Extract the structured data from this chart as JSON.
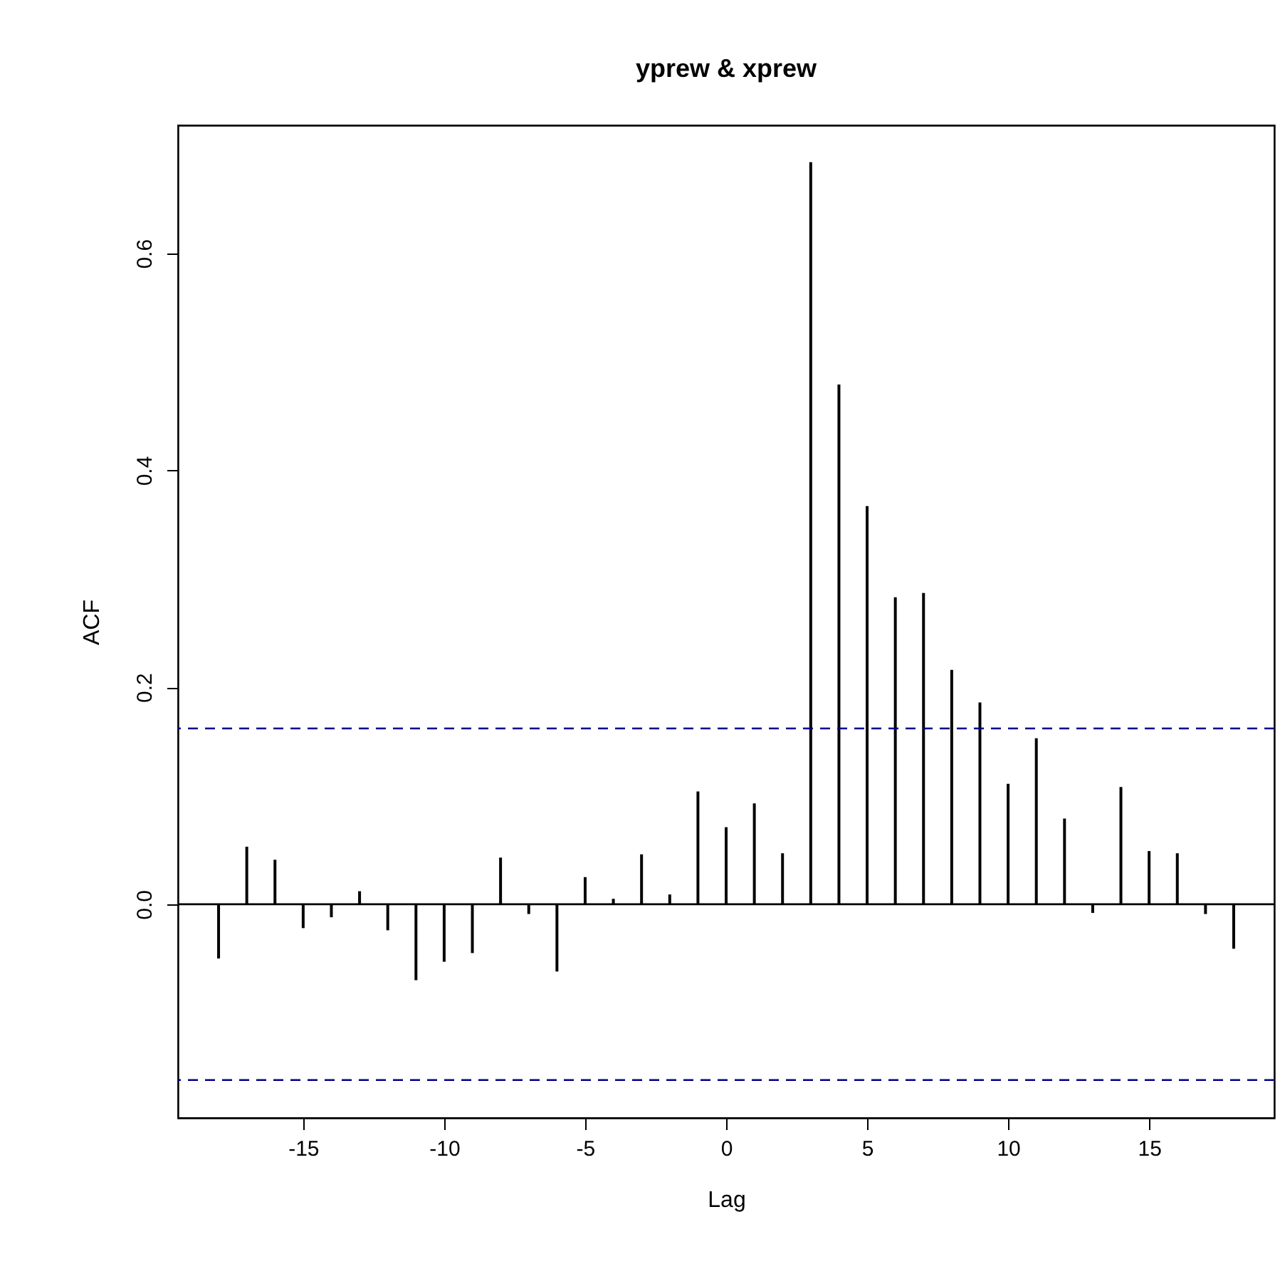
{
  "chart_data": {
    "type": "bar",
    "title": "yprew & xprew",
    "xlabel": "Lag",
    "ylabel": "ACF",
    "x": [
      -18,
      -17,
      -16,
      -15,
      -14,
      -13,
      -12,
      -11,
      -10,
      -9,
      -8,
      -7,
      -6,
      -5,
      -4,
      -3,
      -2,
      -1,
      0,
      1,
      2,
      3,
      4,
      5,
      6,
      7,
      8,
      9,
      10,
      11,
      12,
      13,
      14,
      15,
      16,
      17,
      18
    ],
    "values": [
      -0.05,
      0.053,
      0.041,
      -0.022,
      -0.012,
      0.012,
      -0.024,
      -0.07,
      -0.053,
      -0.045,
      0.043,
      -0.009,
      -0.062,
      0.025,
      0.005,
      0.046,
      0.009,
      0.104,
      0.071,
      0.093,
      0.047,
      0.684,
      0.479,
      0.367,
      0.283,
      0.287,
      0.216,
      0.186,
      0.111,
      0.153,
      0.079,
      -0.008,
      0.108,
      0.049,
      0.047,
      -0.009,
      -0.041
    ],
    "color": "#000000",
    "xlim": [
      -19.44,
      19.44
    ],
    "ylim": [
      -0.197,
      0.718
    ],
    "xticks": [
      -15,
      -10,
      -5,
      0,
      5,
      10,
      15
    ],
    "yticks": [
      {
        "value": 0,
        "label": "0.0"
      },
      {
        "value": 0.2,
        "label": "0.2"
      },
      {
        "value": 0.4,
        "label": "0.4"
      },
      {
        "value": 0.6,
        "label": "0.6"
      }
    ],
    "ref_lines": [
      {
        "axis": "y",
        "value": 0,
        "color": "#000000",
        "line_style": "solid"
      },
      {
        "axis": "y",
        "value": 0.162,
        "color": "#00008b",
        "line_style": "dashed"
      },
      {
        "axis": "y",
        "value": -0.162,
        "color": "#00008b",
        "line_style": "dashed"
      }
    ],
    "grid": false
  }
}
